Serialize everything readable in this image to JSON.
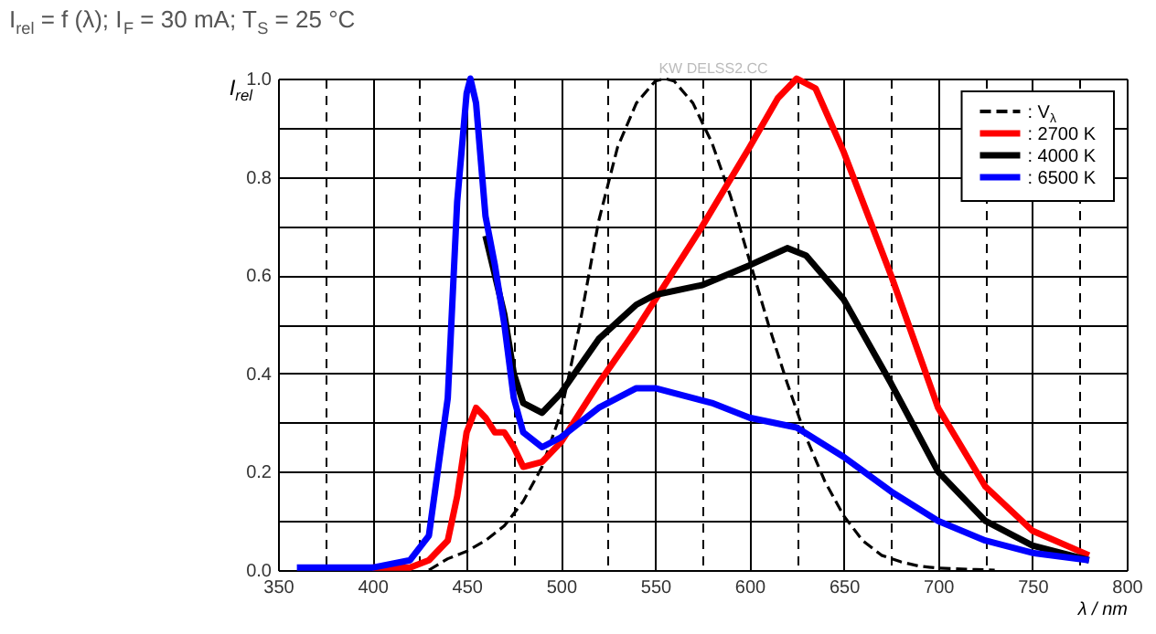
{
  "chart_data": {
    "type": "line",
    "title": "I$_{rel}$ = f (λ); I$_{F}$ = 30 mA; T$_{S}$ = 25 °C",
    "xlabel": "λ / nm",
    "ylabel": "I$_{rel}$",
    "annotations": [
      "KW DELSS2.CC"
    ],
    "xlim": [
      350,
      800
    ],
    "ylim": [
      0,
      1.0
    ],
    "xticks": [
      350,
      {
        "value": 375,
        "label": null
      },
      400,
      {
        "value": 425,
        "label": null
      },
      450,
      {
        "value": 475,
        "label": null
      },
      500,
      {
        "value": 525,
        "label": null
      },
      550,
      {
        "value": 575,
        "label": null
      },
      600,
      {
        "value": 625,
        "label": null
      },
      650,
      {
        "value": 675,
        "label": null
      },
      700,
      {
        "value": 725,
        "label": null
      },
      750,
      {
        "value": 775,
        "label": null
      },
      800
    ],
    "yticks": [
      {
        "value": 0,
        "label": "0.0"
      },
      {
        "value": 0.1,
        "label": null
      },
      0.2,
      {
        "value": 0.3,
        "label": null
      },
      0.4,
      {
        "value": 0.5,
        "label": null
      },
      0.6,
      {
        "value": 0.7,
        "label": null
      },
      0.8,
      {
        "value": 0.9,
        "label": null
      },
      {
        "value": 1.0,
        "label": "1.0"
      }
    ],
    "grid": true,
    "legend": "top right",
    "marker": "none",
    "series": [
      {
        "name": ": V$_{λ}$",
        "color": "#000000",
        "line_style": "dashed",
        "x": [
          430,
          440,
          450,
          460,
          470,
          480,
          490,
          500,
          510,
          520,
          530,
          540,
          550,
          555,
          560,
          570,
          580,
          590,
          600,
          610,
          620,
          630,
          640,
          650,
          660,
          670,
          680,
          690,
          700,
          720,
          730
        ],
        "values": [
          0.0,
          0.023,
          0.038,
          0.06,
          0.09,
          0.14,
          0.21,
          0.32,
          0.5,
          0.71,
          0.86,
          0.95,
          0.995,
          1.0,
          0.995,
          0.95,
          0.87,
          0.76,
          0.63,
          0.5,
          0.38,
          0.27,
          0.18,
          0.11,
          0.06,
          0.03,
          0.017,
          0.008,
          0.004,
          0.001,
          0.0
        ]
      },
      {
        "name": ": 2700 K",
        "color": "#ff0000",
        "line_style": "solid",
        "x": [
          400,
          420,
          430,
          440,
          445,
          450,
          455,
          460,
          465,
          470,
          475,
          480,
          490,
          500,
          520,
          540,
          550,
          575,
          600,
          615,
          625,
          635,
          650,
          675,
          700,
          725,
          750,
          780
        ],
        "values": [
          0.005,
          0.005,
          0.02,
          0.06,
          0.15,
          0.28,
          0.33,
          0.31,
          0.28,
          0.28,
          0.25,
          0.21,
          0.22,
          0.26,
          0.38,
          0.49,
          0.55,
          0.7,
          0.86,
          0.96,
          1.0,
          0.98,
          0.85,
          0.6,
          0.33,
          0.17,
          0.08,
          0.03
        ]
      },
      {
        "name": ": 4000 K",
        "color": "#000000",
        "line_style": "solid",
        "x": [
          460,
          465,
          470,
          475,
          480,
          490,
          500,
          520,
          540,
          550,
          575,
          600,
          620,
          630,
          650,
          675,
          700,
          725,
          750,
          780
        ],
        "values": [
          0.68,
          0.6,
          0.52,
          0.4,
          0.34,
          0.32,
          0.36,
          0.47,
          0.54,
          0.56,
          0.58,
          0.62,
          0.655,
          0.64,
          0.55,
          0.38,
          0.2,
          0.1,
          0.05,
          0.02
        ]
      },
      {
        "name": ": 6500 K",
        "color": "#0000ff",
        "line_style": "solid",
        "x": [
          360,
          400,
          420,
          430,
          440,
          445,
          450,
          452,
          455,
          460,
          465,
          470,
          475,
          480,
          490,
          500,
          520,
          540,
          550,
          580,
          600,
          625,
          650,
          675,
          700,
          725,
          750,
          780
        ],
        "values": [
          0.005,
          0.005,
          0.02,
          0.07,
          0.35,
          0.75,
          0.97,
          1.0,
          0.95,
          0.72,
          0.62,
          0.5,
          0.35,
          0.28,
          0.25,
          0.27,
          0.33,
          0.37,
          0.37,
          0.34,
          0.31,
          0.29,
          0.23,
          0.16,
          0.1,
          0.06,
          0.035,
          0.02
        ]
      }
    ]
  }
}
